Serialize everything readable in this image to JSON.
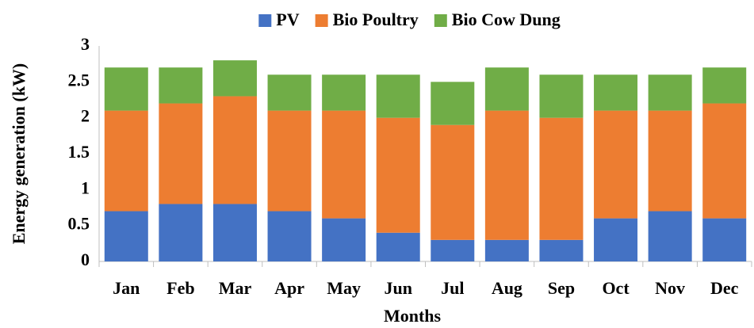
{
  "chart_data": {
    "type": "bar",
    "stacked": true,
    "x_label": "Months",
    "y_label": "Energy generation (kW)",
    "categories": [
      "Jan",
      "Feb",
      "Mar",
      "Apr",
      "May",
      "Jun",
      "Jul",
      "Aug",
      "Sep",
      "Oct",
      "Nov",
      "Dec"
    ],
    "series": [
      {
        "name": "PV",
        "color": "#4472c4",
        "values": [
          0.7,
          0.8,
          0.8,
          0.7,
          0.6,
          0.4,
          0.3,
          0.3,
          0.3,
          0.6,
          0.7,
          0.6
        ]
      },
      {
        "name": "Bio Poultry",
        "color": "#ed7d31",
        "values": [
          1.4,
          1.4,
          1.5,
          1.4,
          1.5,
          1.6,
          1.6,
          1.8,
          1.7,
          1.5,
          1.4,
          1.6
        ]
      },
      {
        "name": "Bio Cow Dung",
        "color": "#70ad47",
        "values": [
          0.6,
          0.5,
          0.5,
          0.5,
          0.5,
          0.6,
          0.6,
          0.6,
          0.6,
          0.5,
          0.5,
          0.5
        ]
      }
    ],
    "ylim": [
      0,
      3
    ],
    "yticks": [
      0,
      0.5,
      1,
      1.5,
      2,
      2.5,
      3
    ],
    "grid": false,
    "legend": "top"
  }
}
